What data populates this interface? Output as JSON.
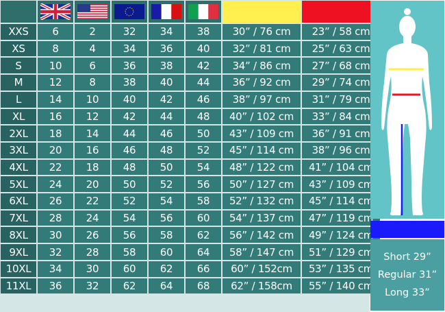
{
  "colors": {
    "waist": "#ffee44",
    "hip": "#ee1122",
    "inseam": "#1a1aff"
  },
  "header": {
    "flags": [
      {
        "name": "uk-flag-icon"
      },
      {
        "name": "us-flag-icon"
      },
      {
        "name": "eu-flag-icon"
      },
      {
        "name": "france-flag-icon"
      },
      {
        "name": "italy-flag-icon"
      }
    ],
    "waist_swatch": "yellow",
    "hip_swatch": "red"
  },
  "rows": [
    [
      "XXS",
      "6",
      "2",
      "32",
      "34",
      "38",
      "30” / 76 cm",
      "23” / 58 cm"
    ],
    [
      "XS",
      "8",
      "4",
      "34",
      "36",
      "40",
      "32” / 81 cm",
      "25” / 63 cm"
    ],
    [
      "S",
      "10",
      "6",
      "36",
      "38",
      "42",
      "34” / 86 cm",
      "27” / 68 cm"
    ],
    [
      "M",
      "12",
      "8",
      "38",
      "40",
      "44",
      "36” / 92 cm",
      "29” / 74 cm"
    ],
    [
      "L",
      "14",
      "10",
      "40",
      "42",
      "46",
      "38” / 97 cm",
      "31” / 79 cm"
    ],
    [
      "XL",
      "16",
      "12",
      "42",
      "44",
      "48",
      "40” / 102 cm",
      "33” / 84 cm"
    ],
    [
      "2XL",
      "18",
      "14",
      "44",
      "46",
      "50",
      "43” / 109 cm",
      "36” / 91 cm"
    ],
    [
      "3XL",
      "20",
      "16",
      "46",
      "48",
      "52",
      "45” / 114 cm",
      "38” / 96 cm"
    ],
    [
      "4XL",
      "22",
      "18",
      "48",
      "50",
      "54",
      "48” / 122 cm",
      "41” / 104 cm"
    ],
    [
      "5XL",
      "24",
      "20",
      "50",
      "52",
      "56",
      "50” / 127 cm",
      "43” / 109 cm"
    ],
    [
      "6XL",
      "26",
      "22",
      "52",
      "54",
      "58",
      "52” / 132 cm",
      "45” / 114 cm"
    ],
    [
      "7XL",
      "28",
      "24",
      "54",
      "56",
      "60",
      "54” / 137 cm",
      "47” / 119 cm"
    ],
    [
      "8XL",
      "30",
      "26",
      "56",
      "58",
      "62",
      "56” / 142 cm",
      "49” / 124 cm"
    ],
    [
      "9XL",
      "32",
      "28",
      "58",
      "60",
      "64",
      "58” / 147 cm",
      "51” / 129 cm"
    ],
    [
      "10XL",
      "34",
      "30",
      "60",
      "62",
      "66",
      "60” / 152cm",
      "53” / 135 cm"
    ],
    [
      "11XL",
      "36",
      "32",
      "62",
      "64",
      "68",
      "62” / 158cm",
      "55” / 140 cm"
    ]
  ],
  "lengths": [
    "Short 29”",
    "Regular 31”",
    "Long 33”"
  ]
}
